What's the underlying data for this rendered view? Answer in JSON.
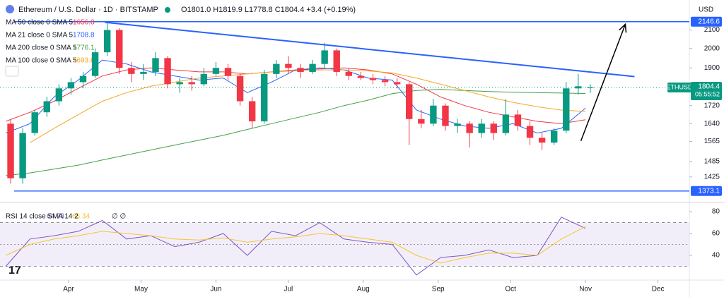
{
  "header": {
    "symbol": "Ethereum / U.S. Dollar · 1D · BITSTAMP",
    "ohlc_text": "O1801.0 H1819.9 L1778.8 C1804.4 +3.4 (+0.19%)",
    "currency": "USD"
  },
  "chart_data": [
    {
      "type": "candlestick",
      "x": [
        67,
        72,
        77,
        82,
        87,
        92,
        97,
        102,
        107,
        112,
        117,
        122,
        127,
        132,
        137,
        142,
        147,
        152,
        157,
        162,
        167,
        172,
        177,
        182,
        187,
        192,
        197,
        202,
        207,
        212,
        217,
        222,
        227,
        232,
        237,
        242,
        247,
        252,
        257,
        262,
        267,
        272,
        277,
        282,
        287,
        292,
        297,
        302,
        307
      ],
      "ohlc": [
        [
          1640,
          1660,
          1400,
          1420
        ],
        [
          1420,
          1620,
          1400,
          1600
        ],
        [
          1600,
          1700,
          1590,
          1690
        ],
        [
          1690,
          1760,
          1670,
          1740
        ],
        [
          1740,
          1820,
          1720,
          1800
        ],
        [
          1800,
          1850,
          1770,
          1830
        ],
        [
          1830,
          1880,
          1800,
          1860
        ],
        [
          1860,
          2000,
          1850,
          1980
        ],
        [
          1980,
          2140,
          1960,
          2100
        ],
        [
          2100,
          2110,
          1870,
          1900
        ],
        [
          1900,
          1930,
          1830,
          1870
        ],
        [
          1870,
          1920,
          1840,
          1880
        ],
        [
          1880,
          1980,
          1860,
          1950
        ],
        [
          1950,
          1960,
          1800,
          1820
        ],
        [
          1820,
          1850,
          1780,
          1830
        ],
        [
          1830,
          1860,
          1790,
          1820
        ],
        [
          1820,
          1900,
          1810,
          1870
        ],
        [
          1870,
          1930,
          1860,
          1900
        ],
        [
          1900,
          1920,
          1840,
          1860
        ],
        [
          1860,
          1870,
          1720,
          1740
        ],
        [
          1740,
          1760,
          1620,
          1650
        ],
        [
          1650,
          1890,
          1640,
          1870
        ],
        [
          1870,
          1940,
          1850,
          1920
        ],
        [
          1920,
          1960,
          1870,
          1900
        ],
        [
          1900,
          1920,
          1850,
          1880
        ],
        [
          1880,
          1940,
          1870,
          1920
        ],
        [
          1920,
          2030,
          1900,
          1990
        ],
        [
          1990,
          2000,
          1860,
          1880
        ],
        [
          1880,
          1900,
          1840,
          1860
        ],
        [
          1860,
          1880,
          1840,
          1850
        ],
        [
          1850,
          1870,
          1820,
          1840
        ],
        [
          1840,
          1860,
          1810,
          1830
        ],
        [
          1830,
          1850,
          1800,
          1820
        ],
        [
          1820,
          1830,
          1550,
          1660
        ],
        [
          1660,
          1700,
          1620,
          1640
        ],
        [
          1640,
          1750,
          1630,
          1720
        ],
        [
          1720,
          1730,
          1610,
          1630
        ],
        [
          1630,
          1660,
          1600,
          1640
        ],
        [
          1640,
          1650,
          1540,
          1600
        ],
        [
          1600,
          1660,
          1580,
          1640
        ],
        [
          1640,
          1650,
          1570,
          1600
        ],
        [
          1600,
          1750,
          1590,
          1680
        ],
        [
          1680,
          1700,
          1610,
          1630
        ],
        [
          1630,
          1650,
          1550,
          1580
        ],
        [
          1580,
          1600,
          1530,
          1560
        ],
        [
          1560,
          1620,
          1550,
          1610
        ],
        [
          1610,
          1830,
          1600,
          1800
        ],
        [
          1800,
          1870,
          1770,
          1810
        ],
        [
          1801.0,
          1819.9,
          1778.8,
          1804.4
        ]
      ],
      "up_color": "#089981",
      "down_color": "#f23645",
      "series": [
        {
          "name": "MA 50 close 0 SMA 5",
          "color": "#f23645",
          "x": [
            65,
            75,
            85,
            95,
            105,
            115,
            125,
            135,
            145,
            155,
            165,
            175,
            185,
            195,
            205,
            215,
            225,
            235,
            245,
            255,
            265,
            275,
            285,
            295,
            305
          ],
          "values": [
            1650,
            1690,
            1740,
            1800,
            1860,
            1890,
            1900,
            1890,
            1880,
            1880,
            1870,
            1880,
            1890,
            1895,
            1900,
            1890,
            1870,
            1820,
            1760,
            1720,
            1690,
            1670,
            1650,
            1640,
            1656.8
          ]
        },
        {
          "name": "MA 21 close 0 SMA 5",
          "color": "#2962ff",
          "x": [
            65,
            75,
            85,
            95,
            105,
            115,
            125,
            135,
            145,
            155,
            165,
            175,
            185,
            195,
            205,
            215,
            225,
            235,
            245,
            255,
            265,
            275,
            285,
            295,
            305
          ],
          "values": [
            1600,
            1640,
            1760,
            1840,
            1940,
            1920,
            1880,
            1860,
            1840,
            1850,
            1780,
            1830,
            1890,
            1900,
            1890,
            1850,
            1840,
            1700,
            1660,
            1630,
            1620,
            1640,
            1600,
            1620,
            1708.8
          ]
        },
        {
          "name": "MA 200 close 0 SMA 5",
          "color": "#43a047",
          "x": [
            65,
            75,
            85,
            95,
            105,
            115,
            125,
            135,
            145,
            155,
            165,
            175,
            185,
            195,
            205,
            215,
            225,
            235,
            245,
            255,
            265,
            275,
            285,
            295,
            305
          ],
          "values": [
            1430,
            1440,
            1455,
            1470,
            1490,
            1510,
            1530,
            1550,
            1570,
            1590,
            1615,
            1640,
            1665,
            1690,
            1720,
            1745,
            1775,
            1790,
            1795,
            1790,
            1785,
            1782,
            1780,
            1778,
            1776.1
          ]
        },
        {
          "name": "MA 100 close 0 SMA 5",
          "color": "#f5a623",
          "x": [
            65,
            75,
            85,
            95,
            105,
            115,
            125,
            135,
            145,
            155,
            165,
            175,
            185,
            195,
            205,
            215,
            225,
            235,
            245,
            255,
            265,
            275,
            285,
            295,
            305
          ],
          "values": [
            null,
            1560,
            1620,
            1680,
            1740,
            1780,
            1810,
            1830,
            1850,
            1860,
            1870,
            1880,
            1885,
            1890,
            1890,
            1885,
            1875,
            1850,
            1820,
            1790,
            1760,
            1735,
            1715,
            1700,
            1693.6
          ]
        }
      ],
      "xlim": [
        62.6,
        348
      ],
      "xticks": [
        {
          "value": 91,
          "label": "Apr"
        },
        {
          "value": 121,
          "label": "May"
        },
        {
          "value": 152,
          "label": "Jun"
        },
        {
          "value": 182,
          "label": "Jul"
        },
        {
          "value": 213,
          "label": "Aug"
        },
        {
          "value": 244,
          "label": "Sep"
        },
        {
          "value": 274,
          "label": "Oct"
        },
        {
          "value": 305,
          "label": "Nov"
        },
        {
          "value": 335,
          "label": "Dec"
        }
      ],
      "ylim": [
        1337,
        2273
      ],
      "log_scale": true,
      "yticks": [
        2100,
        2000,
        1900,
        1720,
        1640,
        1565,
        1485,
        1425
      ],
      "last_price": {
        "symbol": "ETHUSD",
        "value": 1804.4,
        "countdown": "05:55:52"
      },
      "horizontal_lines": [
        {
          "value": 2146.6,
          "color": "#2962ff"
        },
        {
          "value": 1373.1,
          "color": "#2962ff"
        }
      ],
      "trend_line": {
        "color": "#2962ff",
        "points": [
          [
            106,
            2143
          ],
          [
            325.3,
            1857
          ]
        ]
      },
      "arrow": {
        "color": "#000000",
        "points": [
          [
            303.1,
            1567
          ],
          [
            321.5,
            2132
          ]
        ]
      }
    },
    {
      "type": "line",
      "title": "RSI 14 close SMA 14 2",
      "indicator_flags": "∅ ∅",
      "x": [
        65,
        75,
        85,
        95,
        105,
        115,
        125,
        135,
        145,
        155,
        165,
        175,
        185,
        195,
        205,
        215,
        225,
        235,
        245,
        255,
        265,
        275,
        285,
        295,
        305
      ],
      "series": [
        {
          "name": "RSI",
          "color": "#7e57c2",
          "values": [
            30,
            55,
            58,
            62,
            72,
            55,
            58,
            48,
            52,
            60,
            40,
            62,
            58,
            70,
            55,
            52,
            50,
            22,
            38,
            40,
            45,
            38,
            40,
            75,
            64.73
          ]
        },
        {
          "name": "SMA",
          "color": "#f7c530",
          "values": [
            40,
            50,
            55,
            58,
            62,
            60,
            58,
            55,
            54,
            56,
            52,
            55,
            57,
            60,
            58,
            55,
            52,
            40,
            33,
            38,
            42,
            42,
            40,
            55,
            66.34
          ]
        }
      ],
      "xlim": [
        62.6,
        348
      ],
      "ylim": [
        18.7,
        86.5
      ],
      "yticks": [
        80,
        60,
        40
      ],
      "bands": [
        30,
        50,
        70
      ]
    }
  ]
}
